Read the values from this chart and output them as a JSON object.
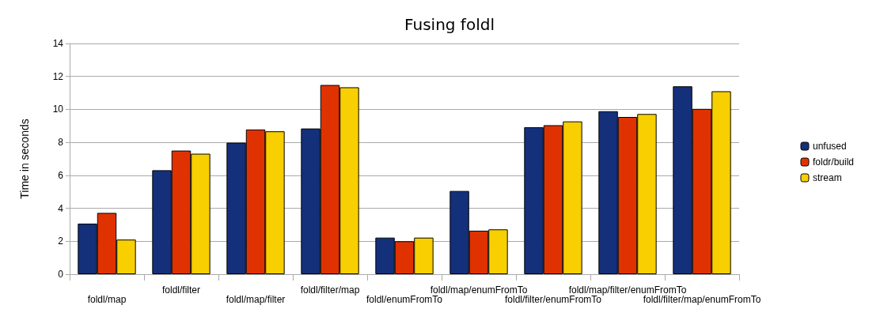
{
  "chart_data": {
    "type": "bar",
    "title": "Fusing foldl",
    "ylabel": "Time in seconds",
    "categories": [
      "foldl/map",
      "foldl/filter",
      "foldl/map/filter",
      "foldl/filter/map",
      "foldl/enumFromTo",
      "foldl/map/enumFromTo",
      "foldl/filter/enumFromTo",
      "foldl/map/filter/enumFromTo",
      "foldl/filter/map/enumFromTo"
    ],
    "series": [
      {
        "name": "unfused",
        "color": "#14307a",
        "values": [
          3.07,
          6.31,
          7.98,
          8.84,
          2.22,
          5.05,
          8.92,
          9.89,
          11.4
        ]
      },
      {
        "name": "foldr/build",
        "color": "#e03200",
        "values": [
          3.72,
          7.5,
          8.78,
          11.48,
          2.0,
          2.64,
          9.04,
          9.54,
          10.03
        ]
      },
      {
        "name": "stream",
        "color": "#f8cf00",
        "values": [
          2.1,
          7.31,
          8.67,
          11.34,
          2.22,
          2.72,
          9.27,
          9.72,
          11.1
        ]
      }
    ],
    "ylim": [
      0,
      14
    ],
    "yticks": [
      0,
      2,
      4,
      6,
      8,
      10,
      12,
      14
    ],
    "grid": "y",
    "legend": "right"
  }
}
